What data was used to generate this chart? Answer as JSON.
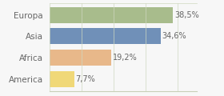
{
  "categories": [
    "Europa",
    "Asia",
    "Africa",
    "America"
  ],
  "values": [
    38.5,
    34.6,
    19.2,
    7.7
  ],
  "labels": [
    "38,5%",
    "34,6%",
    "19,2%",
    "7,7%"
  ],
  "bar_colors": [
    "#a8bc8c",
    "#7090b8",
    "#e8b88a",
    "#f0d878"
  ],
  "background_color": "#f7f7f7",
  "xlim": [
    0,
    46
  ],
  "bar_height": 0.75,
  "label_fontsize": 7,
  "tick_fontsize": 7.5,
  "grid_color": "#d0d8c0",
  "spine_color": "#c8d0b8",
  "text_color": "#666666"
}
